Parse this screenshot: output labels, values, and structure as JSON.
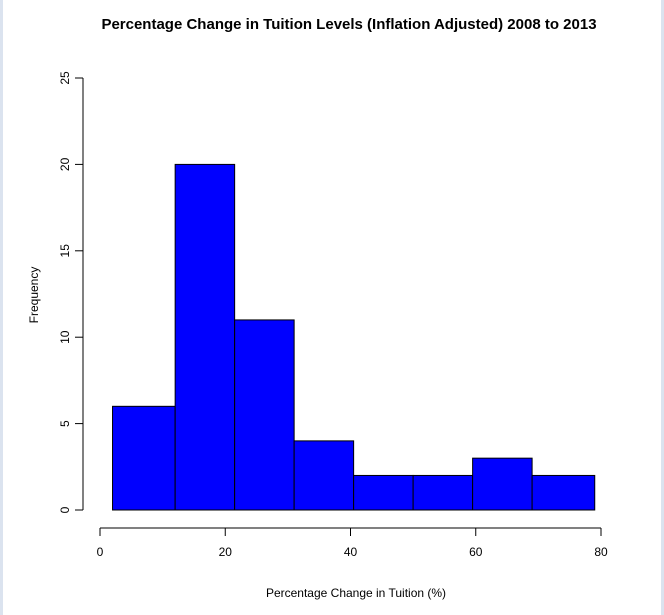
{
  "chart_data": {
    "type": "bar",
    "title": "Percentage Change in Tuition Levels (Inflation Adjusted) 2008 to 2013",
    "xlabel": "Percentage Change in Tuition (%)",
    "ylabel": "Frequency",
    "bins": [
      {
        "x0": 2,
        "x1": 12,
        "count": 6
      },
      {
        "x0": 12,
        "x1": 21.5,
        "count": 20
      },
      {
        "x0": 21.5,
        "x1": 31,
        "count": 11
      },
      {
        "x0": 31,
        "x1": 40.5,
        "count": 4
      },
      {
        "x0": 40.5,
        "x1": 50,
        "count": 2
      },
      {
        "x0": 50,
        "x1": 59.5,
        "count": 2
      },
      {
        "x0": 59.5,
        "x1": 69,
        "count": 3
      },
      {
        "x0": 69,
        "x1": 79,
        "count": 2
      }
    ],
    "xlim": [
      0,
      80
    ],
    "ylim": [
      0,
      25
    ],
    "xticks": [
      0,
      20,
      40,
      60,
      80
    ],
    "yticks": [
      0,
      5,
      10,
      15,
      20,
      25
    ],
    "bar_color": "#0000ff",
    "grid": false,
    "legend": "none"
  }
}
